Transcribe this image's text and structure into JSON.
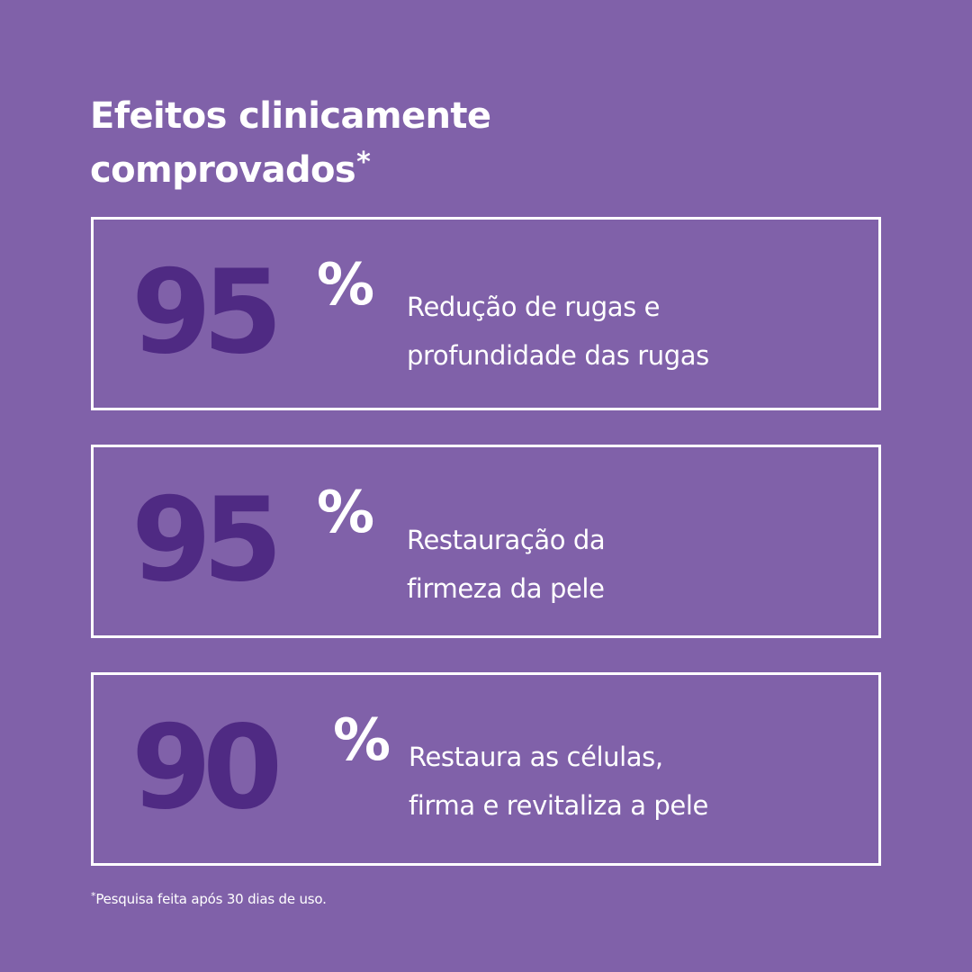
{
  "header": {
    "title_line_1": "Efeitos clinicamente",
    "title_line_2": "comprovados",
    "title_marker": "*"
  },
  "stats": [
    {
      "value": "95",
      "unit": "%",
      "desc_line_1": "Redução de rugas e",
      "desc_line_2": "profundidade das rugas"
    },
    {
      "value": "95",
      "unit": "%",
      "desc_line_1": "Restauração da",
      "desc_line_2": "firmeza da pele"
    },
    {
      "value": "90",
      "unit": "%",
      "desc_line_1": "Restaura as células,",
      "desc_line_2": "firma e revitaliza a pele"
    }
  ],
  "footnote": {
    "marker": "*",
    "text": "Pesquisa feita após 30 dias de uso."
  },
  "colors": {
    "background": "#8061a9",
    "number": "#4f2a83",
    "text": "#ffffff",
    "border": "#ffffff"
  }
}
